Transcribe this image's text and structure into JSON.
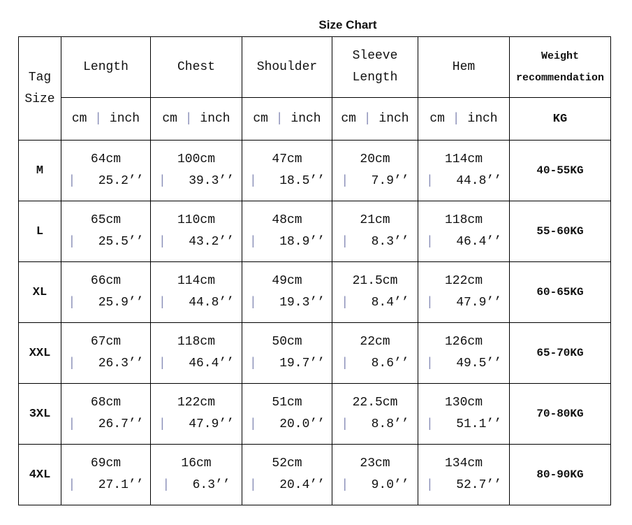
{
  "title": "Size Chart",
  "header": {
    "tag_size": [
      "Tag",
      "Size"
    ],
    "columns": [
      [
        "Length"
      ],
      [
        "Chest"
      ],
      [
        "Shoulder"
      ],
      [
        "Sleeve",
        "Length"
      ],
      [
        "Hem"
      ]
    ],
    "weight": [
      "Weight",
      "recommendation"
    ],
    "unit_cm": "cm",
    "unit_sep": "|",
    "unit_inch": "inch",
    "weight_unit": "KG"
  },
  "separator": "|",
  "rows": [
    {
      "size": "M",
      "cells": [
        [
          "64cm",
          "25.2’’"
        ],
        [
          "100cm",
          "39.3’’"
        ],
        [
          "47cm",
          "18.5’’"
        ],
        [
          "20cm",
          "7.9’’"
        ],
        [
          "114cm",
          "44.8’’"
        ]
      ],
      "weight": "40-55KG"
    },
    {
      "size": "L",
      "cells": [
        [
          "65cm",
          "25.5’’"
        ],
        [
          "110cm",
          "43.2’’"
        ],
        [
          "48cm",
          "18.9’’"
        ],
        [
          "21cm",
          "8.3’’"
        ],
        [
          "118cm",
          "46.4’’"
        ]
      ],
      "weight": "55-60KG"
    },
    {
      "size": "XL",
      "cells": [
        [
          "66cm",
          "25.9’’"
        ],
        [
          "114cm",
          "44.8’’"
        ],
        [
          "49cm",
          "19.3’’"
        ],
        [
          "21.5cm",
          "8.4’’"
        ],
        [
          "122cm",
          "47.9’’"
        ]
      ],
      "weight": "60-65KG"
    },
    {
      "size": "XXL",
      "cells": [
        [
          "67cm",
          "26.3’’"
        ],
        [
          "118cm",
          "46.4’’"
        ],
        [
          "50cm",
          "19.7’’"
        ],
        [
          "22cm",
          "8.6’’"
        ],
        [
          "126cm",
          "49.5’’"
        ]
      ],
      "weight": "65-70KG"
    },
    {
      "size": "3XL",
      "cells": [
        [
          "68cm",
          "26.7’’"
        ],
        [
          "122cm",
          "47.9’’"
        ],
        [
          "51cm",
          "20.0’’"
        ],
        [
          "22.5cm",
          "8.8’’"
        ],
        [
          "130cm",
          "51.1’’"
        ]
      ],
      "weight": "70-80KG"
    },
    {
      "size": "4XL",
      "cells": [
        [
          "69cm",
          "27.1’’"
        ],
        [
          "16cm",
          "6.3’’"
        ],
        [
          "52cm",
          "20.4’’"
        ],
        [
          "23cm",
          "9.0’’"
        ],
        [
          "134cm",
          "52.7’’"
        ]
      ],
      "weight": "80-90KG"
    }
  ]
}
